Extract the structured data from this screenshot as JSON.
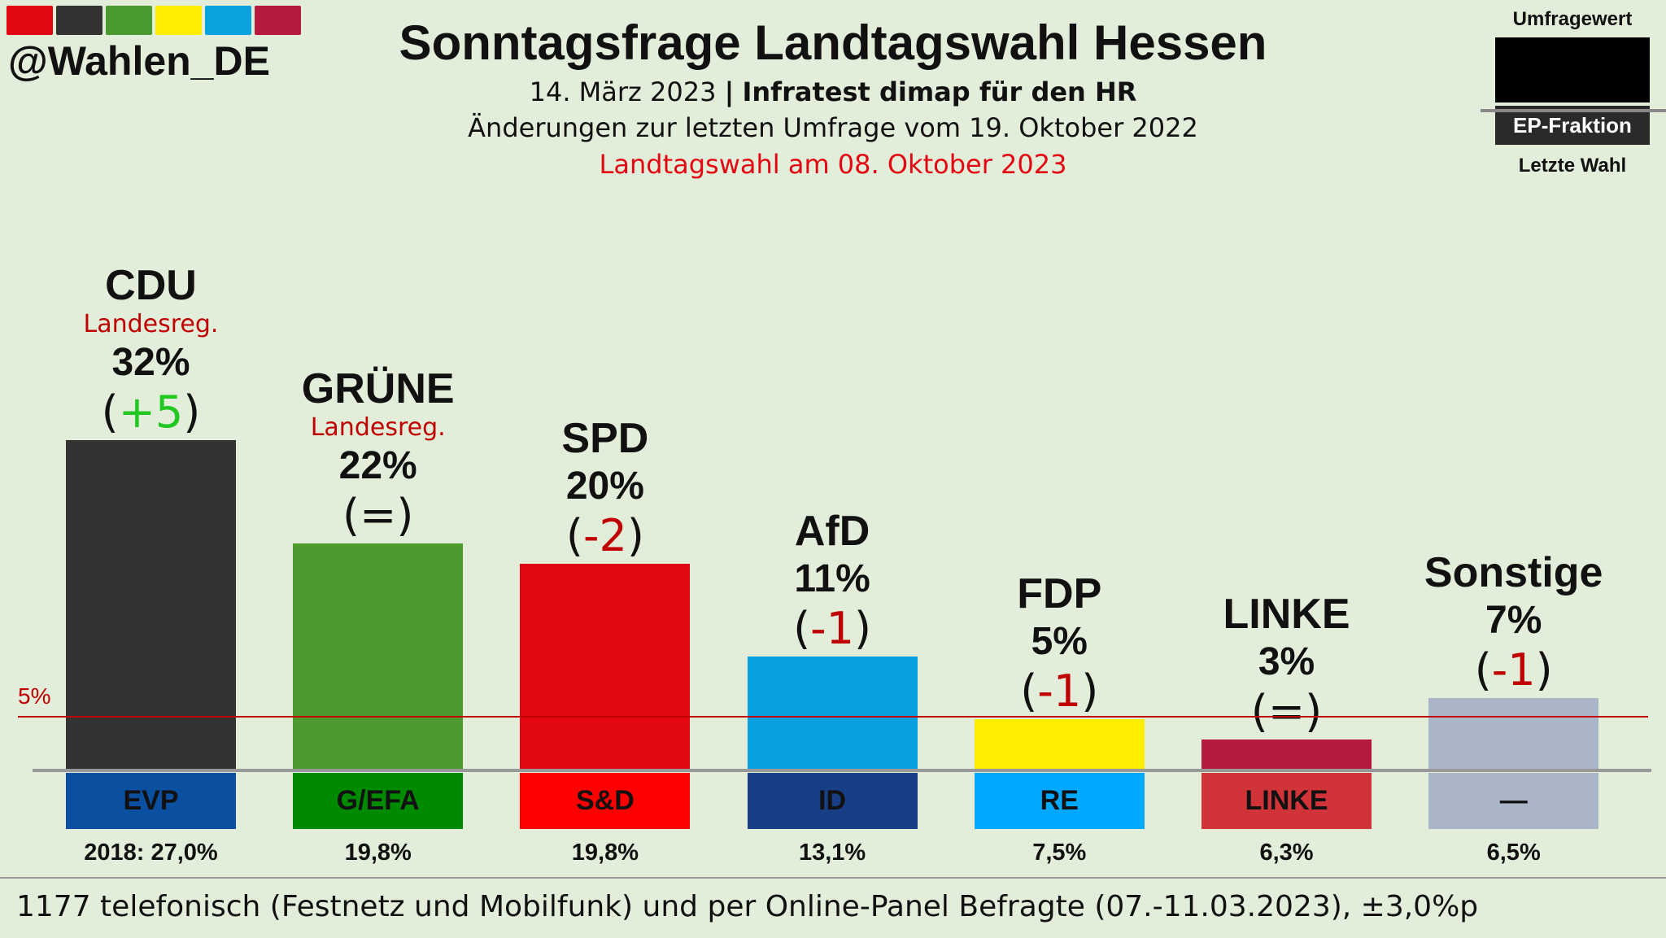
{
  "brand": {
    "handle": "@Wahlen_DE",
    "colors": [
      "#e30613",
      "#333333",
      "#4a9a30",
      "#ffed00",
      "#0aa3e0",
      "#b5193b"
    ]
  },
  "header": {
    "title": "Sonntagsfrage Landtagswahl Hessen",
    "date": "14. März 2023",
    "separator": "|",
    "institute": "Infratest dimap für den HR",
    "changes_note": "Änderungen zur letzten Umfrage vom 19. Oktober 2022",
    "election_note": "Landtagswahl am 08. Oktober 2023"
  },
  "legend": {
    "top": "Umfragewert",
    "middle": "EP-Fraktion",
    "bottom": "Letzte Wahl"
  },
  "chart_data": {
    "type": "bar",
    "title": "Sonntagsfrage Landtagswahl Hessen",
    "ylim": [
      0,
      32
    ],
    "threshold": {
      "value": 5,
      "label": "5%"
    },
    "categories": [
      "CDU",
      "GRÜNE",
      "SPD",
      "AfD",
      "FDP",
      "LINKE",
      "Sonstige"
    ],
    "values": [
      32,
      22,
      20,
      11,
      5,
      3,
      7
    ],
    "value_labels": [
      "32%",
      "22%",
      "20%",
      "11%",
      "5%",
      "3%",
      "7%"
    ],
    "changes": [
      "+5",
      "=",
      "-2",
      "-1",
      "-1",
      "=",
      "-1"
    ],
    "notes": [
      "Landesreg.",
      "Landesreg.",
      "",
      "",
      "",
      "",
      ""
    ],
    "colors": [
      "#333333",
      "#4f9a2e",
      "#e30613",
      "#0a9fdf",
      "#ffed00",
      "#b5193b",
      "#aab6c8"
    ],
    "ep_groups": [
      "EVP",
      "G/EFA",
      "S&D",
      "ID",
      "RE",
      "LINKE",
      "—"
    ],
    "ep_colors": [
      "#0a4fa0",
      "#008a00",
      "#ff0000",
      "#183f86",
      "#00a9ff",
      "#d03438",
      "#aab6c8"
    ],
    "last_election": [
      "2018: 27,0%",
      "19,8%",
      "19,8%",
      "13,1%",
      "7,5%",
      "6,3%",
      "6,5%"
    ]
  },
  "footer": "1177 telefonisch (Festnetz und Mobilfunk) und per Online-Panel Befragte (07.-11.03.2023), ±3,0%p"
}
